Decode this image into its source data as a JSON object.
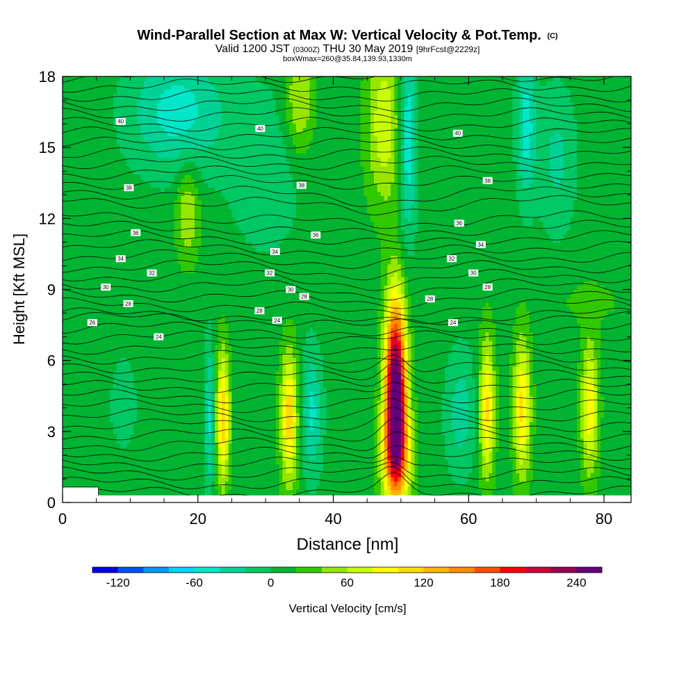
{
  "chart_data": {
    "type": "heatmap",
    "title": "Wind-Parallel Section at Max W: Vertical Velocity & Pot.Temp.",
    "title_mark": "(C)",
    "subtitle_valid": "Valid 1200 JST",
    "subtitle_utc": "(0300Z)",
    "subtitle_date": "THU 30 May 2019",
    "subtitle_fcst": "[9hrFcst@2229z]",
    "subtitle_box": "boxWmax=260@35.84,139.93,1330m",
    "xlabel": "Distance [nm]",
    "ylabel": "Height [Kft MSL]",
    "xlim": [
      0,
      84
    ],
    "ylim": [
      0,
      18
    ],
    "x_ticks": [
      "0",
      "20",
      "40",
      "60",
      "80"
    ],
    "y_ticks": [
      "0",
      "3",
      "6",
      "9",
      "12",
      "15",
      "18"
    ],
    "colorbar_label": "Vertical Velocity [cm/s]",
    "colorbar_ticks": [
      "-120",
      "-60",
      "0",
      "60",
      "120",
      "180",
      "240"
    ],
    "colorbar_range": [
      -140,
      260
    ],
    "colorbar_colors": [
      "#0000e6",
      "#0050ff",
      "#0096ff",
      "#00d2ff",
      "#00e6c8",
      "#00d296",
      "#00c864",
      "#00b432",
      "#32c800",
      "#96e600",
      "#c8ff00",
      "#ffff00",
      "#ffdc00",
      "#ffb400",
      "#ff8c00",
      "#ff5000",
      "#ff0000",
      "#c8003c",
      "#960050",
      "#640078"
    ],
    "background_w": 10,
    "w_features": [
      {
        "x": 49.2,
        "z": 5.0,
        "wx": 1.1,
        "wz": 2.6,
        "w": 250
      },
      {
        "x": 49.3,
        "z": 2.0,
        "wx": 1.5,
        "wz": 1.6,
        "w": 120
      },
      {
        "x": 33.5,
        "z": 3.6,
        "wx": 0.9,
        "wz": 2.0,
        "w": 105
      },
      {
        "x": 23.7,
        "z": 3.6,
        "wx": 0.7,
        "wz": 2.0,
        "w": 105
      },
      {
        "x": 62.7,
        "z": 4.0,
        "wx": 0.8,
        "wz": 2.1,
        "w": 95
      },
      {
        "x": 67.9,
        "z": 4.0,
        "wx": 0.9,
        "wz": 2.1,
        "w": 95
      },
      {
        "x": 77.9,
        "z": 4.0,
        "wx": 0.9,
        "wz": 2.0,
        "w": 85
      },
      {
        "x": 21.7,
        "z": 3.6,
        "wx": 0.5,
        "wz": 2.3,
        "w": -55
      },
      {
        "x": 36.8,
        "z": 3.8,
        "wx": 1.1,
        "wz": 1.9,
        "w": -55
      },
      {
        "x": 58.8,
        "z": 3.8,
        "wx": 1.6,
        "wz": 1.9,
        "w": -40
      },
      {
        "x": 9.0,
        "z": 4.2,
        "wx": 1.6,
        "wz": 1.6,
        "w": -20
      },
      {
        "x": 47.5,
        "z": 16.0,
        "wx": 1.8,
        "wz": 2.5,
        "w": 65
      },
      {
        "x": 35.0,
        "z": 17.0,
        "wx": 1.5,
        "wz": 1.6,
        "w": 55
      },
      {
        "x": 51.0,
        "z": 15.5,
        "wx": 0.9,
        "wz": 3.0,
        "w": -70
      },
      {
        "x": 17.0,
        "z": 16.5,
        "wx": 5.0,
        "wz": 1.8,
        "w": -60
      },
      {
        "x": 68.5,
        "z": 16.0,
        "wx": 1.0,
        "wz": 2.2,
        "w": -60
      },
      {
        "x": 73.0,
        "z": 14.5,
        "wx": 2.0,
        "wz": 2.2,
        "w": -35
      },
      {
        "x": 30.0,
        "z": 14.0,
        "wx": 4.0,
        "wz": 2.5,
        "w": -25
      },
      {
        "x": 18.5,
        "z": 12.3,
        "wx": 1.2,
        "wz": 1.5,
        "w": 50
      },
      {
        "x": 78.0,
        "z": 8.5,
        "wx": 4.0,
        "wz": 0.8,
        "w": 15
      }
    ],
    "contour_labels": [
      {
        "text": "40",
        "x": 8.6,
        "y": 16.1
      },
      {
        "text": "40",
        "x": 29.2,
        "y": 15.8
      },
      {
        "text": "40",
        "x": 58.4,
        "y": 15.6
      },
      {
        "text": "38",
        "x": 9.8,
        "y": 13.3
      },
      {
        "text": "38",
        "x": 35.3,
        "y": 13.4
      },
      {
        "text": "38",
        "x": 62.8,
        "y": 13.6
      },
      {
        "text": "36",
        "x": 10.8,
        "y": 11.4
      },
      {
        "text": "36",
        "x": 37.4,
        "y": 11.3
      },
      {
        "text": "36",
        "x": 58.6,
        "y": 11.8
      },
      {
        "text": "34",
        "x": 8.6,
        "y": 10.3
      },
      {
        "text": "34",
        "x": 31.4,
        "y": 10.6
      },
      {
        "text": "34",
        "x": 61.8,
        "y": 10.9
      },
      {
        "text": "32",
        "x": 13.2,
        "y": 9.7
      },
      {
        "text": "32",
        "x": 30.6,
        "y": 9.7
      },
      {
        "text": "32",
        "x": 57.5,
        "y": 10.3
      },
      {
        "text": "30",
        "x": 6.4,
        "y": 9.1
      },
      {
        "text": "30",
        "x": 33.7,
        "y": 9.0
      },
      {
        "text": "30",
        "x": 60.7,
        "y": 9.7
      },
      {
        "text": "28",
        "x": 9.7,
        "y": 8.4
      },
      {
        "text": "28",
        "x": 35.7,
        "y": 8.7
      },
      {
        "text": "28",
        "x": 29.1,
        "y": 8.1
      },
      {
        "text": "28",
        "x": 54.3,
        "y": 8.6
      },
      {
        "text": "28",
        "x": 62.8,
        "y": 9.1
      },
      {
        "text": "26",
        "x": 4.4,
        "y": 7.6
      },
      {
        "text": "24",
        "x": 31.7,
        "y": 7.7
      },
      {
        "text": "24",
        "x": 57.7,
        "y": 7.6
      },
      {
        "text": "24",
        "x": 14.2,
        "y": 7.0
      }
    ]
  }
}
